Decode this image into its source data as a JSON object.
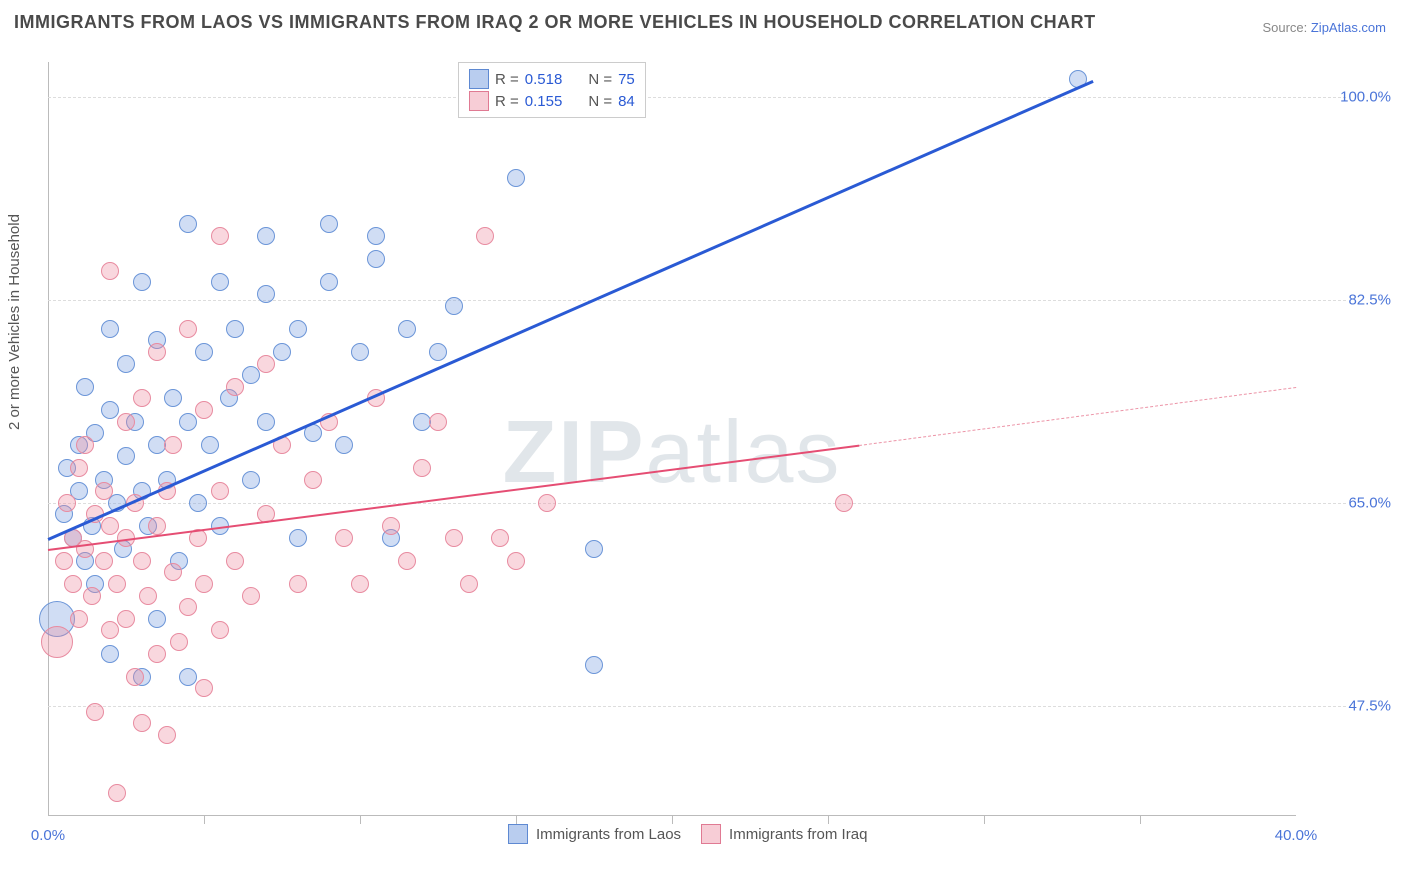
{
  "title": "IMMIGRANTS FROM LAOS VS IMMIGRANTS FROM IRAQ 2 OR MORE VEHICLES IN HOUSEHOLD CORRELATION CHART",
  "source_prefix": "Source: ",
  "source_link": "ZipAtlas.com",
  "y_axis_label": "2 or more Vehicles in Household",
  "watermark_bold": "ZIP",
  "watermark_light": "atlas",
  "chart": {
    "type": "scatter",
    "background_color": "#ffffff",
    "grid_color": "#dddddd",
    "axis_color": "#bbbbbb",
    "xlim": [
      0.0,
      40.0
    ],
    "ylim": [
      38.0,
      103.0
    ],
    "x_tick_labels": [
      {
        "x": 0.0,
        "label": "0.0%"
      },
      {
        "x": 40.0,
        "label": "40.0%"
      }
    ],
    "x_minor_ticks": [
      5,
      10,
      15,
      20,
      25,
      30,
      35
    ],
    "y_ticks": [
      {
        "y": 47.5,
        "label": "47.5%"
      },
      {
        "y": 65.0,
        "label": "65.0%"
      },
      {
        "y": 82.5,
        "label": "82.5%"
      },
      {
        "y": 100.0,
        "label": "100.0%"
      }
    ],
    "series": [
      {
        "name": "Immigrants from Laos",
        "fill": "rgba(119,158,223,0.35)",
        "stroke": "#6b95d8",
        "swatch_fill": "#b9cdef",
        "swatch_border": "#5e89d2",
        "R": "0.518",
        "N": "75",
        "trend": {
          "x1": 0.0,
          "y1": 62.0,
          "x2": 33.5,
          "y2": 101.5,
          "color": "#2a5ad4",
          "width": 2.5
        },
        "marker_radius": 9,
        "points": [
          {
            "x": 0.3,
            "y": 55,
            "r": 18
          },
          {
            "x": 0.5,
            "y": 64
          },
          {
            "x": 0.6,
            "y": 68
          },
          {
            "x": 0.8,
            "y": 62
          },
          {
            "x": 1.0,
            "y": 66
          },
          {
            "x": 1.0,
            "y": 70
          },
          {
            "x": 1.2,
            "y": 60
          },
          {
            "x": 1.2,
            "y": 75
          },
          {
            "x": 1.4,
            "y": 63
          },
          {
            "x": 1.5,
            "y": 58
          },
          {
            "x": 1.5,
            "y": 71
          },
          {
            "x": 1.8,
            "y": 67
          },
          {
            "x": 2.0,
            "y": 52
          },
          {
            "x": 2.0,
            "y": 73
          },
          {
            "x": 2.0,
            "y": 80
          },
          {
            "x": 2.2,
            "y": 65
          },
          {
            "x": 2.4,
            "y": 61
          },
          {
            "x": 2.5,
            "y": 69
          },
          {
            "x": 2.5,
            "y": 77
          },
          {
            "x": 2.8,
            "y": 72
          },
          {
            "x": 3.0,
            "y": 50
          },
          {
            "x": 3.0,
            "y": 66
          },
          {
            "x": 3.0,
            "y": 84
          },
          {
            "x": 3.2,
            "y": 63
          },
          {
            "x": 3.5,
            "y": 55
          },
          {
            "x": 3.5,
            "y": 70
          },
          {
            "x": 3.5,
            "y": 79
          },
          {
            "x": 3.8,
            "y": 67
          },
          {
            "x": 4.0,
            "y": 74
          },
          {
            "x": 4.2,
            "y": 60
          },
          {
            "x": 4.5,
            "y": 50
          },
          {
            "x": 4.5,
            "y": 72
          },
          {
            "x": 4.5,
            "y": 89
          },
          {
            "x": 4.8,
            "y": 65
          },
          {
            "x": 5.0,
            "y": 78
          },
          {
            "x": 5.2,
            "y": 70
          },
          {
            "x": 5.5,
            "y": 84
          },
          {
            "x": 5.5,
            "y": 63
          },
          {
            "x": 5.8,
            "y": 74
          },
          {
            "x": 6.0,
            "y": 80
          },
          {
            "x": 6.5,
            "y": 67
          },
          {
            "x": 6.5,
            "y": 76
          },
          {
            "x": 7.0,
            "y": 72
          },
          {
            "x": 7.0,
            "y": 83
          },
          {
            "x": 7.0,
            "y": 88
          },
          {
            "x": 7.5,
            "y": 78
          },
          {
            "x": 8.0,
            "y": 62
          },
          {
            "x": 8.0,
            "y": 80
          },
          {
            "x": 8.5,
            "y": 71
          },
          {
            "x": 9.0,
            "y": 84
          },
          {
            "x": 9.0,
            "y": 89
          },
          {
            "x": 9.5,
            "y": 70
          },
          {
            "x": 10.0,
            "y": 78
          },
          {
            "x": 10.5,
            "y": 88
          },
          {
            "x": 10.5,
            "y": 86
          },
          {
            "x": 11.0,
            "y": 62
          },
          {
            "x": 11.5,
            "y": 80
          },
          {
            "x": 12.0,
            "y": 72
          },
          {
            "x": 12.5,
            "y": 78
          },
          {
            "x": 13.0,
            "y": 82
          },
          {
            "x": 15.0,
            "y": 93
          },
          {
            "x": 17.5,
            "y": 61
          },
          {
            "x": 17.5,
            "y": 51
          },
          {
            "x": 33.0,
            "y": 101.5
          }
        ]
      },
      {
        "name": "Immigrants from Iraq",
        "fill": "rgba(238,140,160,0.35)",
        "stroke": "#e88ba0",
        "swatch_fill": "#f7cdd6",
        "swatch_border": "#e07a93",
        "R": "0.155",
        "N": "84",
        "trend": {
          "x1": 0.0,
          "y1": 61.0,
          "x2": 26.0,
          "y2": 70.0,
          "color": "#e54d73",
          "width": 2
        },
        "trend_extend": {
          "x1": 26.0,
          "y1": 70.0,
          "x2": 40.0,
          "y2": 75.0,
          "color": "#ec94a7"
        },
        "marker_radius": 9,
        "points": [
          {
            "x": 0.3,
            "y": 53,
            "r": 16
          },
          {
            "x": 0.5,
            "y": 60
          },
          {
            "x": 0.6,
            "y": 65
          },
          {
            "x": 0.8,
            "y": 58
          },
          {
            "x": 0.8,
            "y": 62
          },
          {
            "x": 1.0,
            "y": 55
          },
          {
            "x": 1.0,
            "y": 68
          },
          {
            "x": 1.2,
            "y": 61
          },
          {
            "x": 1.2,
            "y": 70
          },
          {
            "x": 1.4,
            "y": 57
          },
          {
            "x": 1.5,
            "y": 64
          },
          {
            "x": 1.5,
            "y": 47
          },
          {
            "x": 1.8,
            "y": 60
          },
          {
            "x": 1.8,
            "y": 66
          },
          {
            "x": 2.0,
            "y": 54
          },
          {
            "x": 2.0,
            "y": 63
          },
          {
            "x": 2.0,
            "y": 85
          },
          {
            "x": 2.2,
            "y": 58
          },
          {
            "x": 2.2,
            "y": 40
          },
          {
            "x": 2.5,
            "y": 55
          },
          {
            "x": 2.5,
            "y": 62
          },
          {
            "x": 2.5,
            "y": 72
          },
          {
            "x": 2.8,
            "y": 50
          },
          {
            "x": 2.8,
            "y": 65
          },
          {
            "x": 3.0,
            "y": 46
          },
          {
            "x": 3.0,
            "y": 60
          },
          {
            "x": 3.0,
            "y": 74
          },
          {
            "x": 3.2,
            "y": 57
          },
          {
            "x": 3.5,
            "y": 52
          },
          {
            "x": 3.5,
            "y": 63
          },
          {
            "x": 3.5,
            "y": 78
          },
          {
            "x": 3.8,
            "y": 45
          },
          {
            "x": 3.8,
            "y": 66
          },
          {
            "x": 4.0,
            "y": 59
          },
          {
            "x": 4.0,
            "y": 70
          },
          {
            "x": 4.2,
            "y": 53
          },
          {
            "x": 4.5,
            "y": 56
          },
          {
            "x": 4.5,
            "y": 80
          },
          {
            "x": 4.8,
            "y": 62
          },
          {
            "x": 5.0,
            "y": 49
          },
          {
            "x": 5.0,
            "y": 58
          },
          {
            "x": 5.0,
            "y": 73
          },
          {
            "x": 5.5,
            "y": 54
          },
          {
            "x": 5.5,
            "y": 66
          },
          {
            "x": 5.5,
            "y": 88
          },
          {
            "x": 6.0,
            "y": 60
          },
          {
            "x": 6.0,
            "y": 75
          },
          {
            "x": 6.5,
            "y": 57
          },
          {
            "x": 7.0,
            "y": 64
          },
          {
            "x": 7.0,
            "y": 77
          },
          {
            "x": 7.5,
            "y": 70
          },
          {
            "x": 8.0,
            "y": 58
          },
          {
            "x": 8.5,
            "y": 67
          },
          {
            "x": 9.0,
            "y": 72
          },
          {
            "x": 9.5,
            "y": 62
          },
          {
            "x": 10.0,
            "y": 58
          },
          {
            "x": 10.5,
            "y": 74
          },
          {
            "x": 11.0,
            "y": 63
          },
          {
            "x": 11.5,
            "y": 60
          },
          {
            "x": 12.0,
            "y": 68
          },
          {
            "x": 12.5,
            "y": 72
          },
          {
            "x": 13.0,
            "y": 62
          },
          {
            "x": 13.5,
            "y": 58
          },
          {
            "x": 14.0,
            "y": 88
          },
          {
            "x": 14.5,
            "y": 62
          },
          {
            "x": 15.0,
            "y": 60
          },
          {
            "x": 16.0,
            "y": 65
          },
          {
            "x": 25.5,
            "y": 65
          }
        ]
      }
    ],
    "legend_top": {
      "R_label": "R =",
      "N_label": "N ="
    },
    "legend_bottom": [
      {
        "label": "Immigrants from Laos",
        "series": 0
      },
      {
        "label": "Immigrants from Iraq",
        "series": 1
      }
    ]
  }
}
